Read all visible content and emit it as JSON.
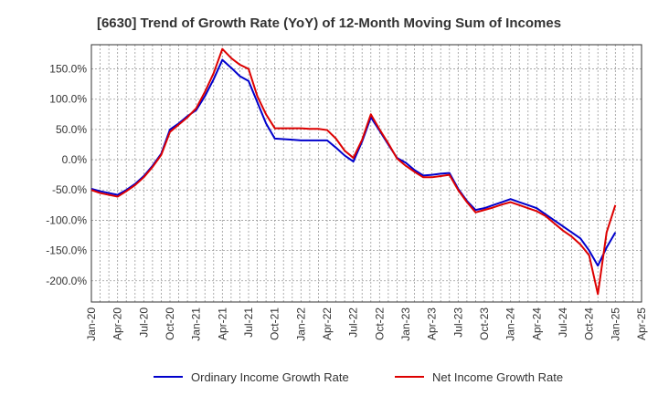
{
  "chart_data": {
    "type": "line",
    "title": "[6630]  Trend of Growth Rate (YoY) of 12-Month Moving Sum of Incomes",
    "xlabel": "",
    "ylabel": "",
    "ylim": [
      -235,
      190
    ],
    "y_ticks": [
      150,
      100,
      50,
      0,
      -50,
      -100,
      -150,
      -200
    ],
    "y_tick_labels": [
      "150.0%",
      "100.0%",
      "50.0%",
      "0.0%",
      "-50.0%",
      "-100.0%",
      "-150.0%",
      "-200.0%"
    ],
    "x_tick_labels": [
      "Jan-20",
      "Apr-20",
      "Jul-20",
      "Oct-20",
      "Jan-21",
      "Apr-21",
      "Jul-21",
      "Oct-21",
      "Jan-22",
      "Apr-22",
      "Jul-22",
      "Oct-22",
      "Jan-23",
      "Apr-23",
      "Jul-23",
      "Oct-23",
      "Jan-24",
      "Apr-24",
      "Jul-24",
      "Oct-24",
      "Jan-25",
      "Apr-25"
    ],
    "x": [
      "2020-01",
      "2020-02",
      "2020-03",
      "2020-04",
      "2020-05",
      "2020-06",
      "2020-07",
      "2020-08",
      "2020-09",
      "2020-10",
      "2020-11",
      "2020-12",
      "2021-01",
      "2021-02",
      "2021-03",
      "2021-04",
      "2021-05",
      "2021-06",
      "2021-07",
      "2021-08",
      "2021-09",
      "2021-10",
      "2021-11",
      "2021-12",
      "2022-01",
      "2022-02",
      "2022-03",
      "2022-04",
      "2022-05",
      "2022-06",
      "2022-07",
      "2022-08",
      "2022-09",
      "2022-10",
      "2022-11",
      "2022-12",
      "2023-01",
      "2023-02",
      "2023-03",
      "2023-04",
      "2023-05",
      "2023-06",
      "2023-07",
      "2023-08",
      "2023-09",
      "2023-10",
      "2023-11",
      "2023-12",
      "2024-01",
      "2024-02",
      "2024-03",
      "2024-04",
      "2024-05",
      "2024-06",
      "2024-07",
      "2024-08",
      "2024-09",
      "2024-10",
      "2024-11",
      "2024-12",
      "2025-01"
    ],
    "series": [
      {
        "name": "Ordinary Income Growth Rate",
        "color": "#0000cc",
        "values": [
          -48,
          -52,
          -55,
          -58,
          -50,
          -40,
          -27,
          -10,
          10,
          50,
          60,
          72,
          82,
          105,
          133,
          165,
          152,
          138,
          130,
          95,
          60,
          35,
          34,
          33,
          32,
          32,
          32,
          32,
          20,
          7,
          -3,
          30,
          70,
          48,
          25,
          3,
          -5,
          -17,
          -26,
          -25,
          -23,
          -22,
          -48,
          -68,
          -83,
          -80,
          -75,
          -70,
          -65,
          -70,
          -75,
          -80,
          -90,
          -100,
          -110,
          -120,
          -130,
          -150,
          -175,
          -145,
          -120
        ]
      },
      {
        "name": "Net Income Growth Rate",
        "color": "#dd0000",
        "values": [
          -50,
          -55,
          -58,
          -61,
          -52,
          -42,
          -29,
          -12,
          8,
          46,
          58,
          70,
          85,
          112,
          143,
          183,
          168,
          157,
          150,
          105,
          75,
          52,
          52,
          52,
          52,
          51,
          51,
          49,
          35,
          15,
          3,
          33,
          75,
          50,
          27,
          2,
          -10,
          -20,
          -29,
          -29,
          -27,
          -25,
          -50,
          -70,
          -87,
          -83,
          -79,
          -74,
          -70,
          -75,
          -80,
          -85,
          -93,
          -105,
          -117,
          -127,
          -140,
          -158,
          -222,
          -120,
          -75
        ]
      }
    ],
    "legend_position": "bottom",
    "grid": true
  }
}
